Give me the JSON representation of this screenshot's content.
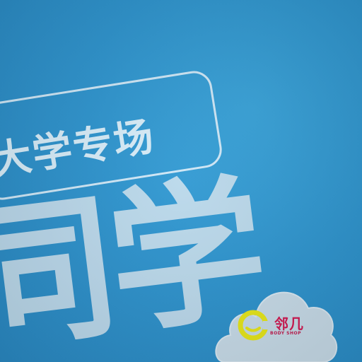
{
  "photo": {
    "background_color": "#2f95cf",
    "pill_text": "大学专场",
    "big_text": "同学",
    "badge": {
      "logo_icon": "smiley-c-logo",
      "text_cn": "邻几",
      "text_en": "BODY SHOP",
      "text_color": "#d11a53",
      "logo_color": "#e6e61a"
    }
  }
}
